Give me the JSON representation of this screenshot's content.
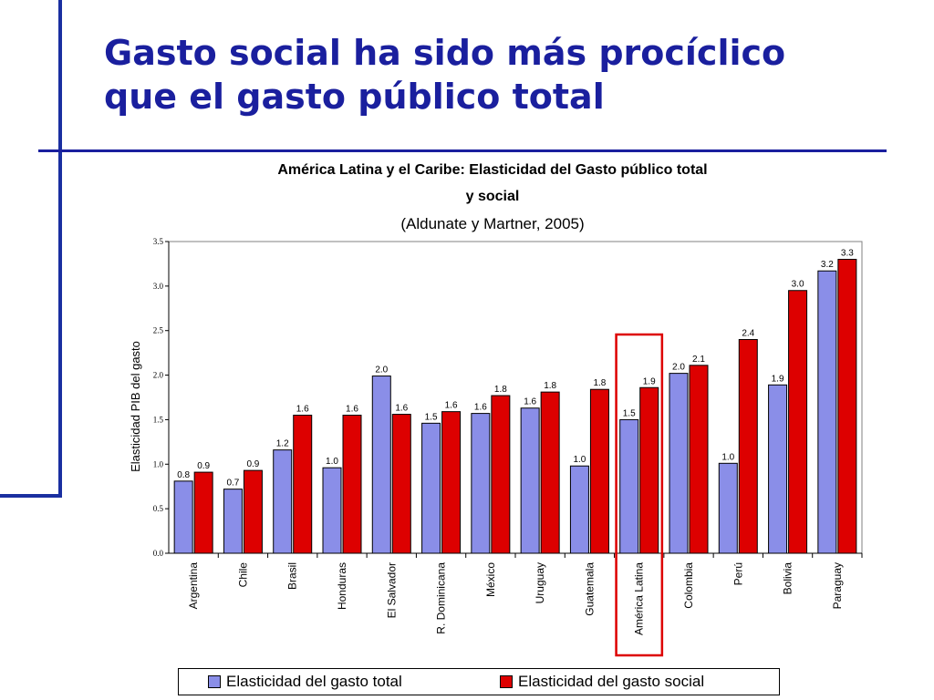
{
  "slide": {
    "title_line1": "Gasto social ha sido más procíclico",
    "title_line2": "que el gasto público total"
  },
  "chart_data": {
    "type": "bar",
    "title": "América Latina y el Caribe: Elasticidad del Gasto público total y social",
    "title_line1": "América Latina y el Caribe: Elasticidad del Gasto público total",
    "title_line2": "y social",
    "subtitle": "(Aldunate y Martner, 2005)",
    "xlabel": "",
    "ylabel": "Elasticidad PIB  del gasto",
    "ylim": [
      0,
      3.5
    ],
    "yticks": [
      "0.0",
      "0.5",
      "1.0",
      "1.5",
      "2.0",
      "2.5",
      "3.0",
      "3.5"
    ],
    "grid": false,
    "legend_position": "bottom",
    "categories": [
      "Argentina",
      "Chile",
      "Brasil",
      "Honduras",
      "El Salvador",
      "R. Dominicana",
      "México",
      "Uruguay",
      "Guatemala",
      "América Latina",
      "Colombia",
      "Perú",
      "Bolivia",
      "Paraguay"
    ],
    "series": [
      {
        "name": "Elasticidad del gasto total",
        "color": "#8a8ee8",
        "values": [
          0.81,
          0.72,
          1.16,
          0.96,
          1.99,
          1.46,
          1.57,
          1.63,
          0.98,
          1.5,
          2.02,
          1.01,
          1.89,
          3.17
        ],
        "labels": [
          "0.8",
          "0.7",
          "1.2",
          "1.0",
          "2.0",
          "1.5",
          "1.6",
          "1.6",
          "1.0",
          "1.5",
          "2.0",
          "1.0",
          "1.9",
          "3.2"
        ]
      },
      {
        "name": "Elasticidad del gasto social",
        "color": "#dd0000",
        "values": [
          0.91,
          0.93,
          1.55,
          1.55,
          1.56,
          1.59,
          1.77,
          1.81,
          1.84,
          1.86,
          2.11,
          2.4,
          2.95,
          3.3
        ],
        "labels": [
          "0.9",
          "0.9",
          "1.6",
          "1.6",
          "1.6",
          "1.6",
          "1.8",
          "1.8",
          "1.8",
          "1.9",
          "2.1",
          "2.4",
          "3.0",
          "3.3"
        ]
      }
    ],
    "highlight_category": "América Latina",
    "highlight_color": "#dd0000"
  }
}
